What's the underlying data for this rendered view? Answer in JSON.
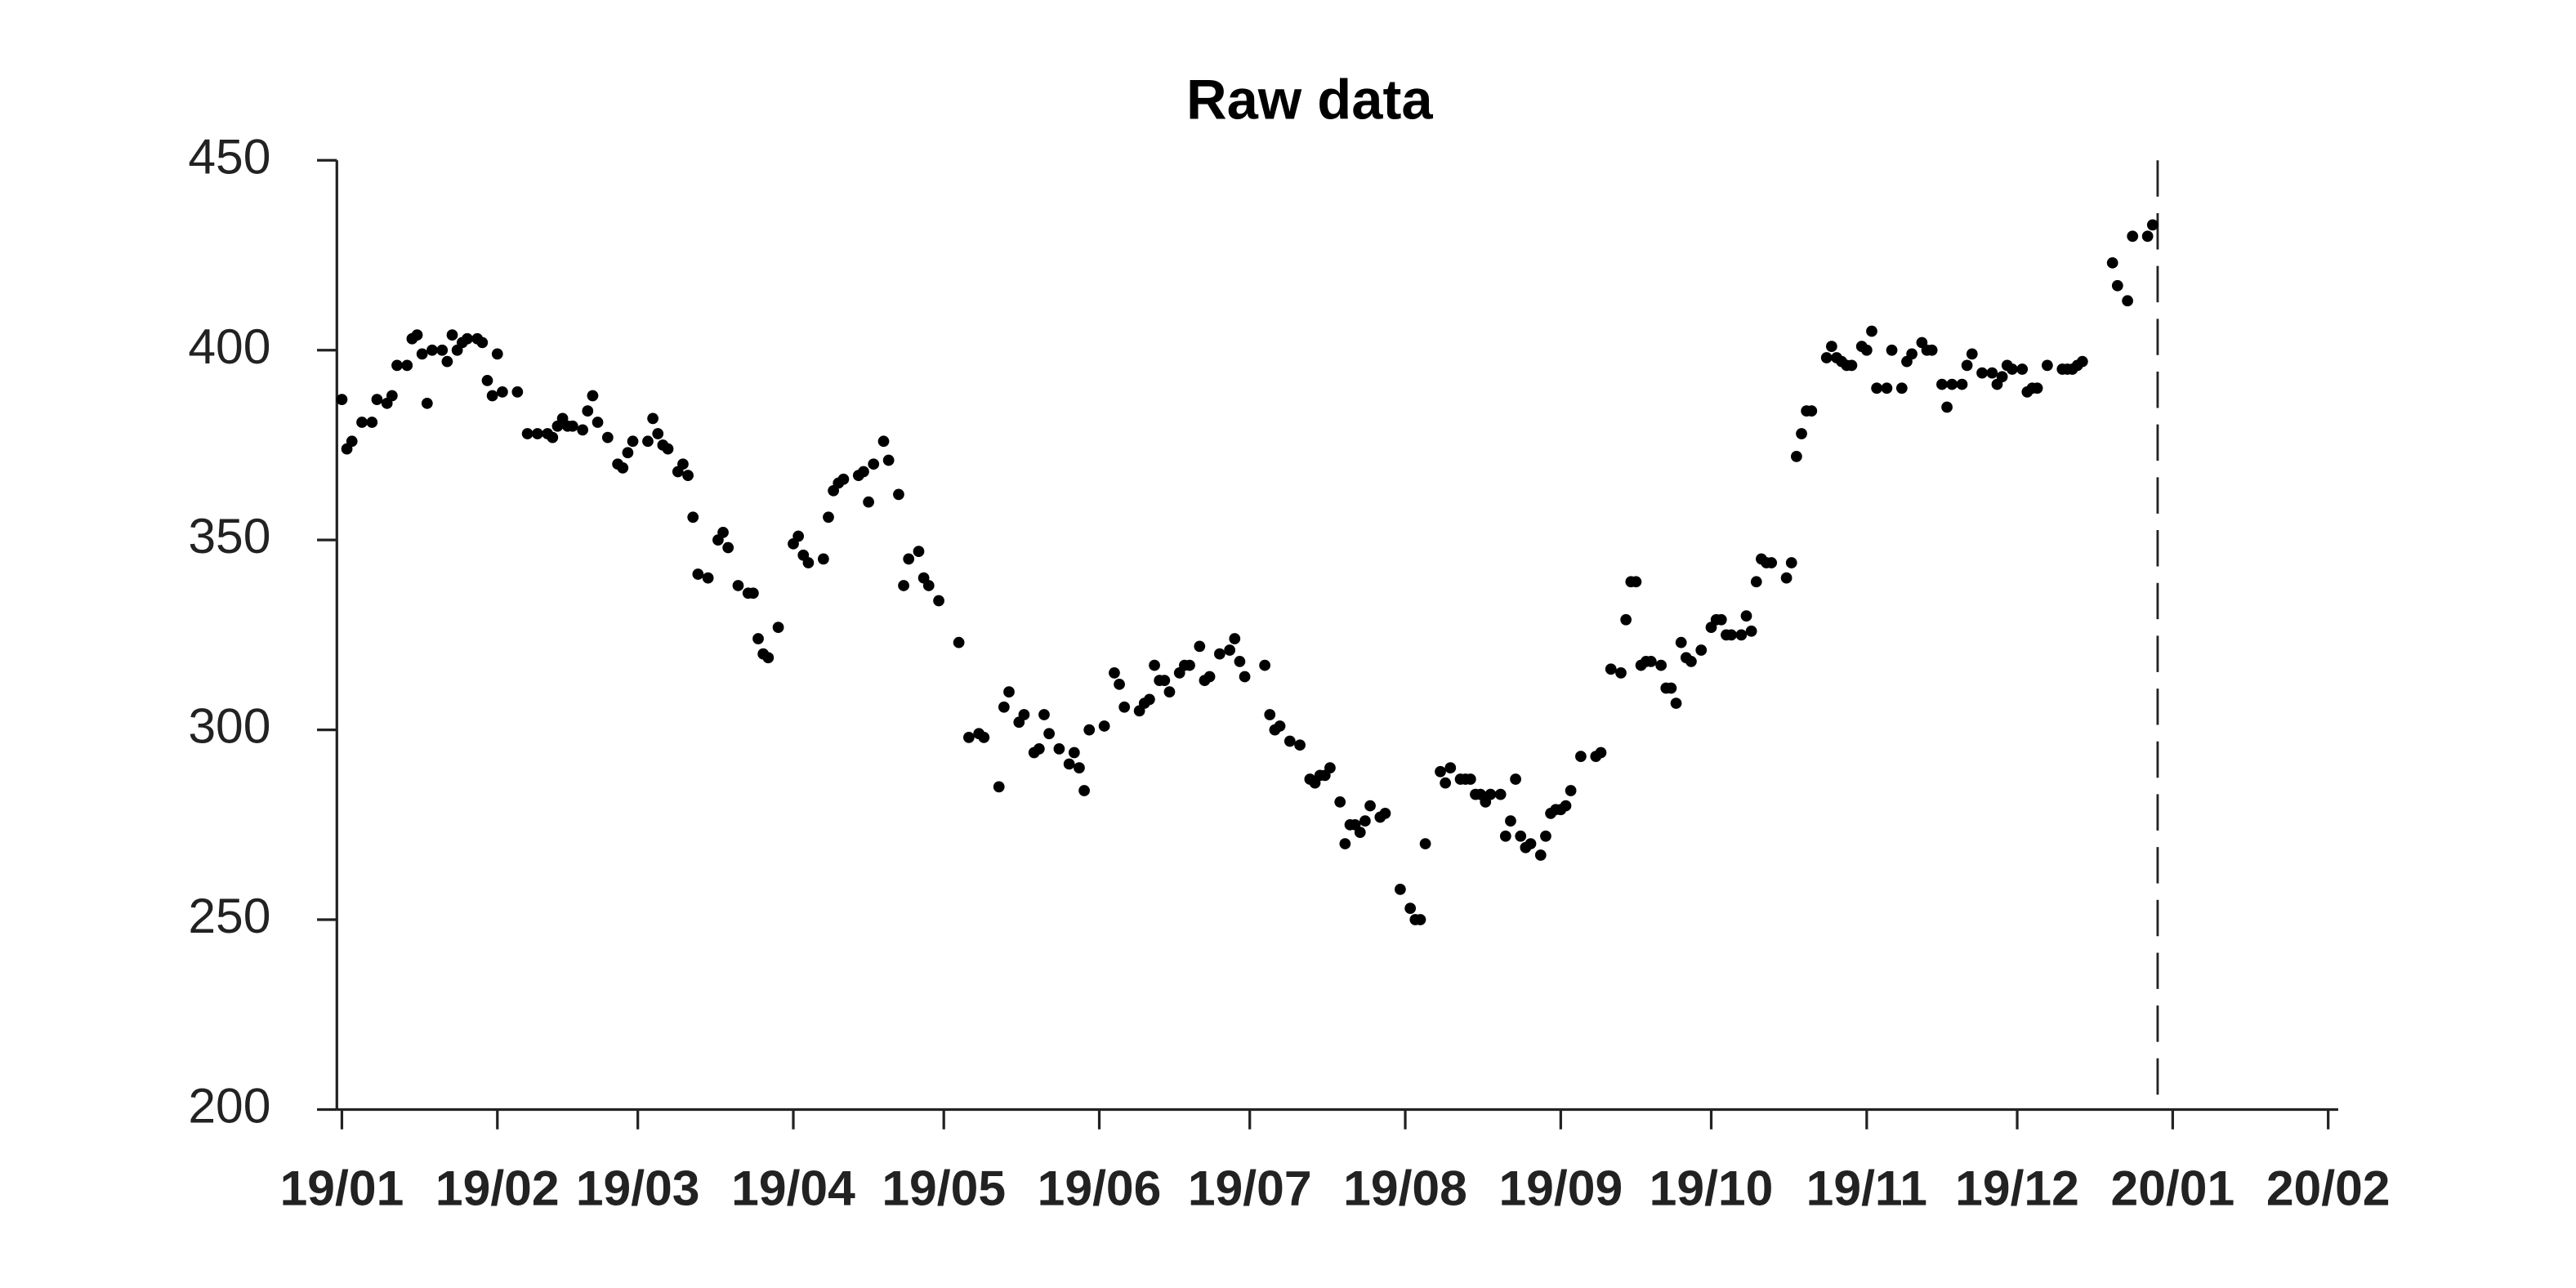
{
  "chart_data": {
    "type": "scatter",
    "title": "Raw data",
    "series": [
      {
        "color": "#000000",
        "x": [
          0,
          1,
          2,
          4,
          6,
          7,
          9,
          10,
          11,
          13,
          14,
          15,
          16,
          17,
          18,
          20,
          21,
          22,
          23,
          24,
          25,
          27,
          28,
          29,
          30,
          31,
          32,
          35,
          37,
          39,
          41,
          42,
          43,
          44,
          45,
          46,
          48,
          49,
          50,
          51,
          53,
          55,
          56,
          57,
          58,
          61,
          62,
          63,
          64,
          65,
          67,
          68,
          69,
          70,
          71,
          73,
          75,
          76,
          77,
          79,
          81,
          82,
          83,
          84,
          85,
          87,
          90,
          91,
          92,
          93,
          96,
          97,
          98,
          99,
          100,
          103,
          104,
          105,
          106,
          108,
          109,
          111,
          112,
          113,
          115,
          116,
          117,
          119,
          123,
          125,
          127,
          128,
          131,
          132,
          133,
          135,
          136,
          138,
          139,
          140,
          141,
          143,
          145,
          146,
          147,
          148,
          149,
          152,
          154,
          155,
          156,
          159,
          160,
          161,
          162,
          163,
          164,
          165,
          167,
          168,
          169,
          171,
          172,
          173,
          175,
          177,
          178,
          179,
          180,
          184,
          185,
          186,
          187,
          189,
          191,
          193,
          194,
          195,
          196,
          197,
          199,
          200,
          201,
          202,
          203,
          204,
          205,
          207,
          208,
          211,
          213,
          214,
          215,
          216,
          219,
          220,
          221,
          223,
          224,
          225,
          226,
          227,
          228,
          229,
          231,
          232,
          233,
          234,
          235,
          236,
          237,
          239,
          240,
          241,
          242,
          243,
          244,
          245,
          247,
          250,
          251,
          253,
          255,
          256,
          257,
          258,
          259,
          260,
          261,
          263,
          264,
          265,
          266,
          267,
          268,
          269,
          271,
          273,
          274,
          275,
          276,
          277,
          279,
          280,
          281,
          282,
          283,
          284,
          285,
          288,
          289,
          290,
          291,
          292,
          293,
          296,
          297,
          298,
          299,
          300,
          301,
          303,
          304,
          305,
          306,
          308,
          309,
          311,
          312,
          313,
          315,
          316,
          317,
          319,
          320,
          321,
          323,
          324,
          325,
          327,
          329,
          330,
          331,
          332,
          333,
          335,
          336,
          337,
          338,
          340,
          343,
          344,
          345,
          346,
          347,
          353,
          354,
          356,
          357,
          360,
          361
        ],
        "values": [
          387,
          374,
          376,
          381,
          381,
          387,
          386,
          388,
          396,
          396,
          403,
          404,
          399,
          386,
          400,
          400,
          397,
          404,
          400,
          402,
          403,
          403,
          402,
          392,
          388,
          399,
          389,
          389,
          378,
          378,
          378,
          377,
          380,
          382,
          380,
          380,
          379,
          384,
          388,
          381,
          377,
          370,
          369,
          373,
          376,
          376,
          382,
          378,
          375,
          374,
          368,
          370,
          367,
          356,
          341,
          340,
          350,
          352,
          348,
          338,
          336,
          336,
          324,
          320,
          319,
          327,
          349,
          351,
          346,
          344,
          345,
          356,
          363,
          365,
          366,
          367,
          368,
          360,
          370,
          376,
          371,
          362,
          338,
          345,
          347,
          340,
          338,
          334,
          323,
          298,
          299,
          298,
          285,
          306,
          310,
          302,
          304,
          294,
          295,
          304,
          299,
          295,
          291,
          294,
          290,
          284,
          300,
          301,
          315,
          312,
          306,
          305,
          307,
          308,
          317,
          313,
          313,
          310,
          315,
          317,
          317,
          322,
          313,
          314,
          320,
          321,
          324,
          318,
          314,
          317,
          304,
          300,
          301,
          297,
          296,
          287,
          286,
          288,
          288,
          290,
          281,
          270,
          275,
          275,
          273,
          276,
          280,
          277,
          278,
          258,
          253,
          250,
          250,
          270,
          289,
          286,
          290,
          287,
          287,
          287,
          283,
          283,
          281,
          283,
          283,
          272,
          276,
          287,
          272,
          269,
          270,
          267,
          272,
          278,
          279,
          279,
          280,
          284,
          293,
          293,
          294,
          316,
          315,
          329,
          339,
          339,
          317,
          318,
          318,
          317,
          311,
          311,
          307,
          323,
          319,
          318,
          321,
          327,
          329,
          329,
          325,
          325,
          325,
          330,
          326,
          339,
          345,
          344,
          344,
          340,
          344,
          372,
          378,
          384,
          384,
          398,
          401,
          398,
          397,
          396,
          396,
          401,
          400,
          405,
          390,
          390,
          400,
          390,
          397,
          399,
          402,
          400,
          400,
          391,
          385,
          391,
          391,
          396,
          399,
          394,
          394,
          391,
          393,
          396,
          395,
          395,
          389,
          390,
          390,
          396,
          395,
          395,
          395,
          396,
          397,
          423,
          417,
          413,
          430,
          430,
          433
        ]
      }
    ],
    "xlim": [
      -1,
      398
    ],
    "xticks": [
      {
        "value": 0,
        "label": "19/01"
      },
      {
        "value": 31,
        "label": "19/02"
      },
      {
        "value": 59,
        "label": "19/03"
      },
      {
        "value": 90,
        "label": "19/04"
      },
      {
        "value": 120,
        "label": "19/05"
      },
      {
        "value": 151,
        "label": "19/06"
      },
      {
        "value": 181,
        "label": "19/07"
      },
      {
        "value": 212,
        "label": "19/08"
      },
      {
        "value": 243,
        "label": "19/09"
      },
      {
        "value": 273,
        "label": "19/10"
      },
      {
        "value": 304,
        "label": "19/11"
      },
      {
        "value": 334,
        "label": "19/12"
      },
      {
        "value": 365,
        "label": "20/01"
      },
      {
        "value": 396,
        "label": "20/02"
      }
    ],
    "ylim": [
      200,
      450
    ],
    "yticks": [
      200,
      250,
      300,
      350,
      400,
      450
    ],
    "vline": 362
  }
}
